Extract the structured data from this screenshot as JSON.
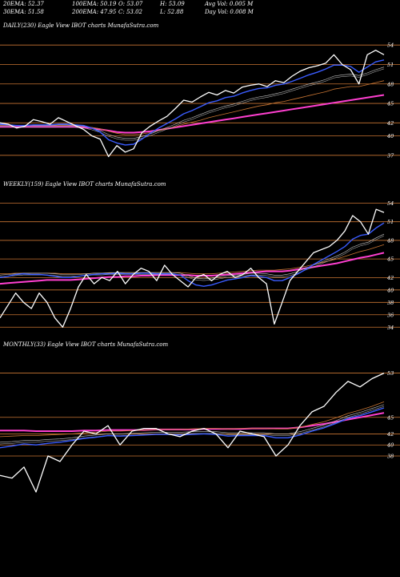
{
  "header": {
    "row1": [
      {
        "key": "ema20",
        "text": "20EMA: 52.37"
      },
      {
        "key": "ema100",
        "text": "100EMA: 50.19"
      },
      {
        "key": "open",
        "text": "O: 53.07"
      },
      {
        "key": "high",
        "text": "H: 53.09"
      },
      {
        "key": "avgvol",
        "text": "Avg Vol: 0.005 M"
      }
    ],
    "row2": [
      {
        "key": "ema30",
        "text": "30EMA: 51.58"
      },
      {
        "key": "ema200",
        "text": "200EMA: 47.95"
      },
      {
        "key": "close",
        "text": "C: 53.02"
      },
      {
        "key": "low",
        "text": "L: 52.88"
      },
      {
        "key": "dayvol",
        "text": "Day Vol: 0.008 M"
      }
    ]
  },
  "colors": {
    "background": "#000000",
    "price": "#ffffff",
    "level_line": "#c87533",
    "ema_blue": "#3a5cff",
    "ema_magenta": "#ff3fd0",
    "ema_orange": "#c87533",
    "ema_grey": "#cccccc"
  },
  "chart_data": [
    {
      "type": "line",
      "title": "DAILY(230) Eagle  View  IBOT charts MunafaSutra.com",
      "ylim": [
        35,
        56
      ],
      "levels": [
        54,
        51,
        48,
        45,
        42,
        40,
        37
      ],
      "x": [
        0,
        1,
        2,
        3,
        4,
        5,
        6,
        7,
        8,
        9,
        10,
        11,
        12,
        13,
        14,
        15,
        16,
        17,
        18,
        19,
        20,
        21,
        22,
        23,
        24,
        25,
        26,
        27,
        28,
        29,
        30,
        31,
        32,
        33,
        34,
        35,
        36,
        37,
        38,
        39,
        40,
        41,
        42,
        43,
        44,
        45,
        46
      ],
      "series": [
        {
          "role": "price",
          "values": [
            42.0,
            41.8,
            41.2,
            41.5,
            42.5,
            42.2,
            41.8,
            42.8,
            42.2,
            41.6,
            41.0,
            40.0,
            39.5,
            36.8,
            38.5,
            37.5,
            38.0,
            40.5,
            41.5,
            42.3,
            43.0,
            44.2,
            45.5,
            45.2,
            46.0,
            46.7,
            46.3,
            47.0,
            46.6,
            47.5,
            47.8,
            48.0,
            47.6,
            48.5,
            48.2,
            49.2,
            50.0,
            50.5,
            50.8,
            51.2,
            52.5,
            51.0,
            50.2,
            48.0,
            52.5,
            53.2,
            52.5
          ]
        },
        {
          "role": "ema-blue",
          "values": [
            41.8,
            41.7,
            41.6,
            41.6,
            41.7,
            41.7,
            41.7,
            41.8,
            41.8,
            41.7,
            41.6,
            41.2,
            40.6,
            39.4,
            38.9,
            38.6,
            38.7,
            39.5,
            40.4,
            41.2,
            41.9,
            42.6,
            43.4,
            43.9,
            44.5,
            45.1,
            45.4,
            45.9,
            46.1,
            46.6,
            47.0,
            47.3,
            47.4,
            47.8,
            48.0,
            48.4,
            48.9,
            49.4,
            49.8,
            50.3,
            50.9,
            50.9,
            50.7,
            49.8,
            50.6,
            51.4,
            51.7
          ]
        },
        {
          "role": "ema-grey",
          "values": [
            41.7,
            41.7,
            41.6,
            41.6,
            41.6,
            41.6,
            41.6,
            41.7,
            41.7,
            41.6,
            41.5,
            41.2,
            40.8,
            40.2,
            39.8,
            39.6,
            39.6,
            39.9,
            40.3,
            40.8,
            41.3,
            41.8,
            42.4,
            42.8,
            43.3,
            43.8,
            44.2,
            44.6,
            44.9,
            45.3,
            45.7,
            46.0,
            46.2,
            46.5,
            46.8,
            47.2,
            47.6,
            48.0,
            48.3,
            48.7,
            49.2,
            49.4,
            49.5,
            49.3,
            49.7,
            50.2,
            50.6
          ]
        },
        {
          "role": "ema-orange",
          "values": [
            41.6,
            41.6,
            41.6,
            41.6,
            41.6,
            41.6,
            41.6,
            41.6,
            41.6,
            41.6,
            41.5,
            41.3,
            41.1,
            40.7,
            40.4,
            40.2,
            40.2,
            40.3,
            40.5,
            40.8,
            41.1,
            41.4,
            41.8,
            42.1,
            42.4,
            42.8,
            43.1,
            43.4,
            43.7,
            44.0,
            44.3,
            44.6,
            44.8,
            45.1,
            45.3,
            45.6,
            45.9,
            46.2,
            46.5,
            46.8,
            47.2,
            47.4,
            47.6,
            47.6,
            47.9,
            48.2,
            48.5
          ]
        },
        {
          "role": "ema-magenta",
          "values": [
            41.4,
            41.4,
            41.4,
            41.4,
            41.4,
            41.4,
            41.4,
            41.4,
            41.4,
            41.4,
            41.3,
            41.2,
            41.0,
            40.8,
            40.6,
            40.5,
            40.5,
            40.6,
            40.7,
            40.9,
            41.1,
            41.3,
            41.5,
            41.7,
            41.9,
            42.1,
            42.3,
            42.5,
            42.7,
            42.9,
            43.1,
            43.3,
            43.5,
            43.7,
            43.9,
            44.1,
            44.3,
            44.5,
            44.7,
            44.9,
            45.1,
            45.3,
            45.5,
            45.7,
            45.9,
            46.1,
            46.3
          ]
        }
      ]
    },
    {
      "type": "line",
      "title": "WEEKLY(159) Eagle  View  IBOT charts MunafaSutra.com",
      "ylim": [
        33,
        56
      ],
      "levels": [
        54,
        51,
        48,
        45,
        42,
        40,
        38,
        36,
        34
      ],
      "x": [
        0,
        1,
        2,
        3,
        4,
        5,
        6,
        7,
        8,
        9,
        10,
        11,
        12,
        13,
        14,
        15,
        16,
        17,
        18,
        19,
        20,
        21,
        22,
        23,
        24,
        25,
        26,
        27,
        28,
        29,
        30,
        31,
        32,
        33,
        34,
        35,
        36,
        37,
        38,
        39,
        40,
        41,
        42,
        43,
        44,
        45,
        46,
        47,
        48,
        49
      ],
      "series": [
        {
          "role": "price",
          "values": [
            35.5,
            37.5,
            39.5,
            38.0,
            37.0,
            39.5,
            38.0,
            35.5,
            34.0,
            37.0,
            40.5,
            42.5,
            41.0,
            42.0,
            41.5,
            43.0,
            41.0,
            42.5,
            43.5,
            43.0,
            41.5,
            44.0,
            42.5,
            41.5,
            40.5,
            42.0,
            42.5,
            41.5,
            42.5,
            43.0,
            42.0,
            42.5,
            43.5,
            42.0,
            41.0,
            34.5,
            38.0,
            41.5,
            43.0,
            44.5,
            46.0,
            46.5,
            47.0,
            48.0,
            49.5,
            52.0,
            51.0,
            49.0,
            53.0,
            52.5
          ]
        },
        {
          "role": "ema-blue",
          "values": [
            42.0,
            42.2,
            42.5,
            42.6,
            42.5,
            42.5,
            42.4,
            42.2,
            42.0,
            42.0,
            42.2,
            42.4,
            42.5,
            42.6,
            42.6,
            42.7,
            42.6,
            42.6,
            42.7,
            42.7,
            42.6,
            42.6,
            42.6,
            42.4,
            41.5,
            40.8,
            40.6,
            40.8,
            41.2,
            41.6,
            41.8,
            42.0,
            42.3,
            42.2,
            42.0,
            41.5,
            41.5,
            42.0,
            42.6,
            43.3,
            44.1,
            44.8,
            45.5,
            46.2,
            47.0,
            48.2,
            48.8,
            49.0,
            50.0,
            50.8
          ]
        },
        {
          "role": "ema-grey",
          "values": [
            42.4,
            42.5,
            42.6,
            42.7,
            42.7,
            42.7,
            42.7,
            42.6,
            42.5,
            42.5,
            42.5,
            42.6,
            42.7,
            42.7,
            42.8,
            42.8,
            42.8,
            42.8,
            42.8,
            42.8,
            42.8,
            42.8,
            42.8,
            42.7,
            42.3,
            41.9,
            41.8,
            41.9,
            42.1,
            42.3,
            42.4,
            42.5,
            42.7,
            42.7,
            42.6,
            42.4,
            42.4,
            42.6,
            43.0,
            43.5,
            44.0,
            44.5,
            45.0,
            45.5,
            46.1,
            46.9,
            47.4,
            47.7,
            48.4,
            49.0
          ]
        },
        {
          "role": "ema-orange",
          "values": [
            42.6,
            42.6,
            42.7,
            42.7,
            42.7,
            42.7,
            42.7,
            42.7,
            42.6,
            42.6,
            42.6,
            42.6,
            42.7,
            42.7,
            42.7,
            42.8,
            42.8,
            42.8,
            42.8,
            42.8,
            42.8,
            42.8,
            42.8,
            42.8,
            42.7,
            42.6,
            42.6,
            42.6,
            42.7,
            42.8,
            42.9,
            43.0,
            43.1,
            43.2,
            43.2,
            43.2,
            43.3,
            43.4,
            43.6,
            43.8,
            44.1,
            44.4,
            44.7,
            45.0,
            45.4,
            45.8,
            46.2,
            46.5,
            46.9,
            47.3
          ]
        },
        {
          "role": "ema-magenta",
          "values": [
            41.0,
            41.1,
            41.2,
            41.3,
            41.4,
            41.5,
            41.6,
            41.6,
            41.6,
            41.6,
            41.7,
            41.8,
            41.9,
            42.0,
            42.1,
            42.1,
            42.2,
            42.2,
            42.3,
            42.3,
            42.4,
            42.4,
            42.4,
            42.4,
            42.4,
            42.3,
            42.3,
            42.3,
            42.4,
            42.5,
            42.6,
            42.7,
            42.8,
            42.9,
            43.0,
            43.0,
            43.0,
            43.1,
            43.3,
            43.5,
            43.7,
            43.9,
            44.1,
            44.3,
            44.6,
            44.9,
            45.2,
            45.4,
            45.7,
            46.0
          ]
        }
      ]
    },
    {
      "type": "line",
      "title": "MONTHLY(33) Eagle  View  IBOT charts MunafaSutra.com",
      "ylim": [
        28,
        57
      ],
      "levels": [
        53,
        45,
        42,
        40,
        38
      ],
      "x": [
        0,
        1,
        2,
        3,
        4,
        5,
        6,
        7,
        8,
        9,
        10,
        11,
        12,
        13,
        14,
        15,
        16,
        17,
        18,
        19,
        20,
        21,
        22,
        23,
        24,
        25,
        26,
        27,
        28,
        29,
        30,
        31,
        32
      ],
      "series": [
        {
          "role": "price",
          "values": [
            34.5,
            34.0,
            36.0,
            31.5,
            38.0,
            37.0,
            40.0,
            42.5,
            42.0,
            43.5,
            40.0,
            42.5,
            43.0,
            43.0,
            42.0,
            41.5,
            42.5,
            43.0,
            42.0,
            39.5,
            42.5,
            42.0,
            41.5,
            38.0,
            40.0,
            43.5,
            46.0,
            47.0,
            49.5,
            51.5,
            50.5,
            52.0,
            53.0
          ]
        },
        {
          "role": "ema-blue",
          "values": [
            39.5,
            39.8,
            40.2,
            40.0,
            40.3,
            40.5,
            40.8,
            41.2,
            41.4,
            41.7,
            41.6,
            41.7,
            41.8,
            41.9,
            41.9,
            41.8,
            41.9,
            42.0,
            41.9,
            41.6,
            41.7,
            41.7,
            41.7,
            41.3,
            41.3,
            41.8,
            42.5,
            43.1,
            43.9,
            44.8,
            45.3,
            46.0,
            46.7
          ]
        },
        {
          "role": "ema-grey",
          "values": [
            40.5,
            40.6,
            40.8,
            40.8,
            41.0,
            41.1,
            41.3,
            41.6,
            41.8,
            42.0,
            42.0,
            42.1,
            42.2,
            42.3,
            42.3,
            42.3,
            42.4,
            42.4,
            42.4,
            42.2,
            42.2,
            42.2,
            42.2,
            42.0,
            42.0,
            42.4,
            43.0,
            43.6,
            44.4,
            45.3,
            45.9,
            46.6,
            47.3
          ]
        },
        {
          "role": "ema-orange",
          "values": [
            41.5,
            41.6,
            41.7,
            41.7,
            41.8,
            41.9,
            42.0,
            42.2,
            42.3,
            42.5,
            42.5,
            42.6,
            42.7,
            42.8,
            42.8,
            42.8,
            42.9,
            43.0,
            43.0,
            42.9,
            43.0,
            43.0,
            43.0,
            42.9,
            42.9,
            43.2,
            43.7,
            44.2,
            44.9,
            45.7,
            46.3,
            47.0,
            47.8
          ]
        },
        {
          "role": "ema-magenta",
          "values": [
            42.6,
            42.6,
            42.6,
            42.5,
            42.5,
            42.5,
            42.5,
            42.6,
            42.6,
            42.7,
            42.7,
            42.7,
            42.7,
            42.8,
            42.8,
            42.8,
            42.8,
            42.9,
            42.9,
            42.9,
            42.9,
            43.0,
            43.0,
            43.0,
            43.0,
            43.2,
            43.5,
            43.8,
            44.2,
            44.6,
            45.0,
            45.4,
            45.8
          ]
        }
      ]
    }
  ]
}
